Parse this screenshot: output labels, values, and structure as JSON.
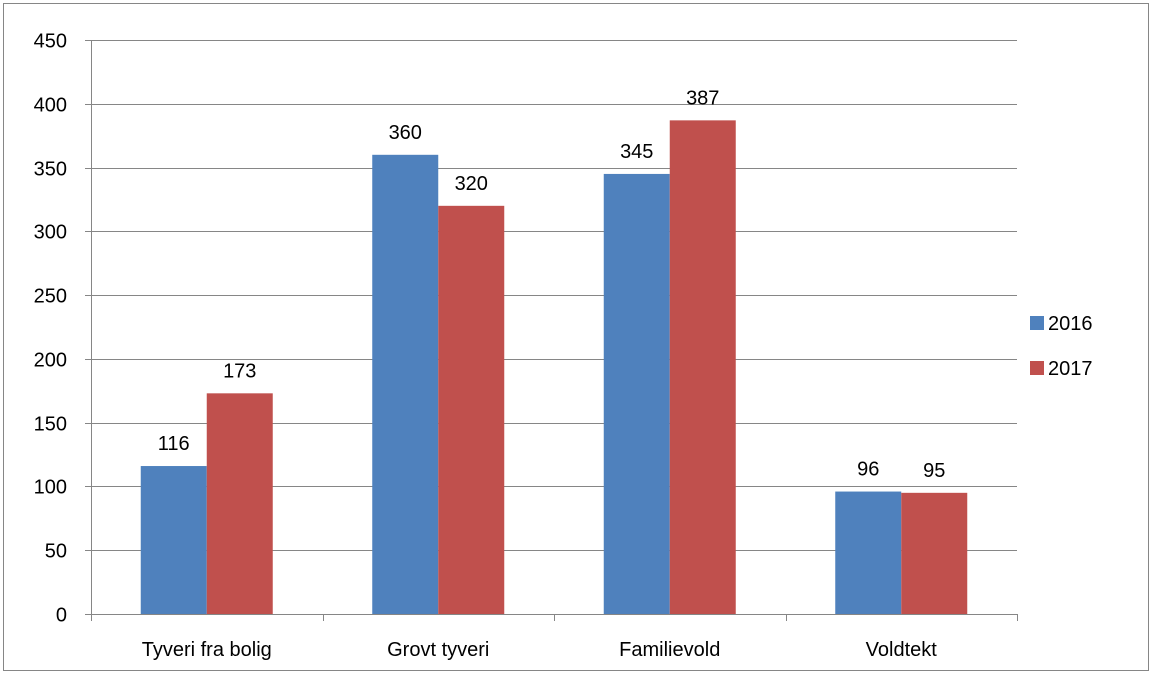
{
  "chart_data": {
    "type": "bar",
    "title": "",
    "xlabel": "",
    "ylabel": "",
    "categories": [
      "Tyveri fra bolig",
      "Grovt tyveri",
      "Familievold",
      "Voldtekt"
    ],
    "series": [
      {
        "name": "2016",
        "values": [
          116,
          360,
          345,
          96
        ],
        "color": "#4F81BD"
      },
      {
        "name": "2017",
        "values": [
          173,
          320,
          387,
          95
        ],
        "color": "#C0504D"
      }
    ],
    "ylim": [
      0,
      450
    ],
    "yticks": [
      0,
      50,
      100,
      150,
      200,
      250,
      300,
      350,
      400,
      450
    ],
    "grid": true,
    "legend_position": "right",
    "data_labels": true
  }
}
